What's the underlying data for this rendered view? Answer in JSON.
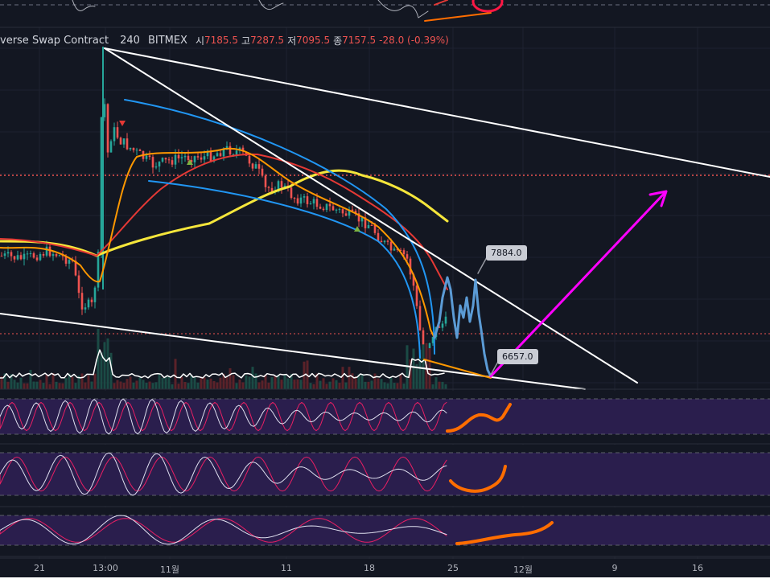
{
  "header": {
    "symbol": "verse Swap Contract",
    "timeframe": "240",
    "exchange": "BITMEX",
    "open_label": "시",
    "open": "7185.5",
    "high_label": "고",
    "high": "7287.5",
    "low_label": "저",
    "low": "7095.5",
    "close_label": "종",
    "close": "7157.5",
    "change": "-28.0 (-0.39%)"
  },
  "annotations": {
    "upper_label": "7884.0",
    "lower_label": "6657.0"
  },
  "x_ticks": [
    "21",
    "13:00",
    "11월",
    "11",
    "18",
    "25",
    "12월",
    "9",
    "16"
  ],
  "colors": {
    "background": "#131722",
    "candle_up": "#26a69a",
    "candle_down": "#ef5350",
    "ma_yellow": "#f5e63b",
    "ma_red": "#e53935",
    "ma_orange": "#ff9800",
    "arc_blue": "#2196f3",
    "trendline": "#ffffff",
    "projection_arrow": "#ff00ff",
    "projection_path": "#5b9bd5",
    "oscillator_panel": "#2a1e4d",
    "hand_drawn": "#ff6d00",
    "dotted_level": "#ef5350"
  },
  "chart_data": {
    "type": "line",
    "title": "",
    "xlabel": "",
    "ylabel": "",
    "x": [
      "21",
      "13:00",
      "11월",
      "11",
      "18",
      "25",
      "12월",
      "9",
      "16"
    ],
    "series": [],
    "price_labels": [
      7884.0,
      6657.0
    ],
    "ohlc_last": {
      "open": 7185.5,
      "high": 7287.5,
      "low": 7095.5,
      "close": 7157.5,
      "change": -28.0,
      "change_pct": -0.39
    },
    "grid": true,
    "legend": "none",
    "oscillator_panels": 3
  }
}
